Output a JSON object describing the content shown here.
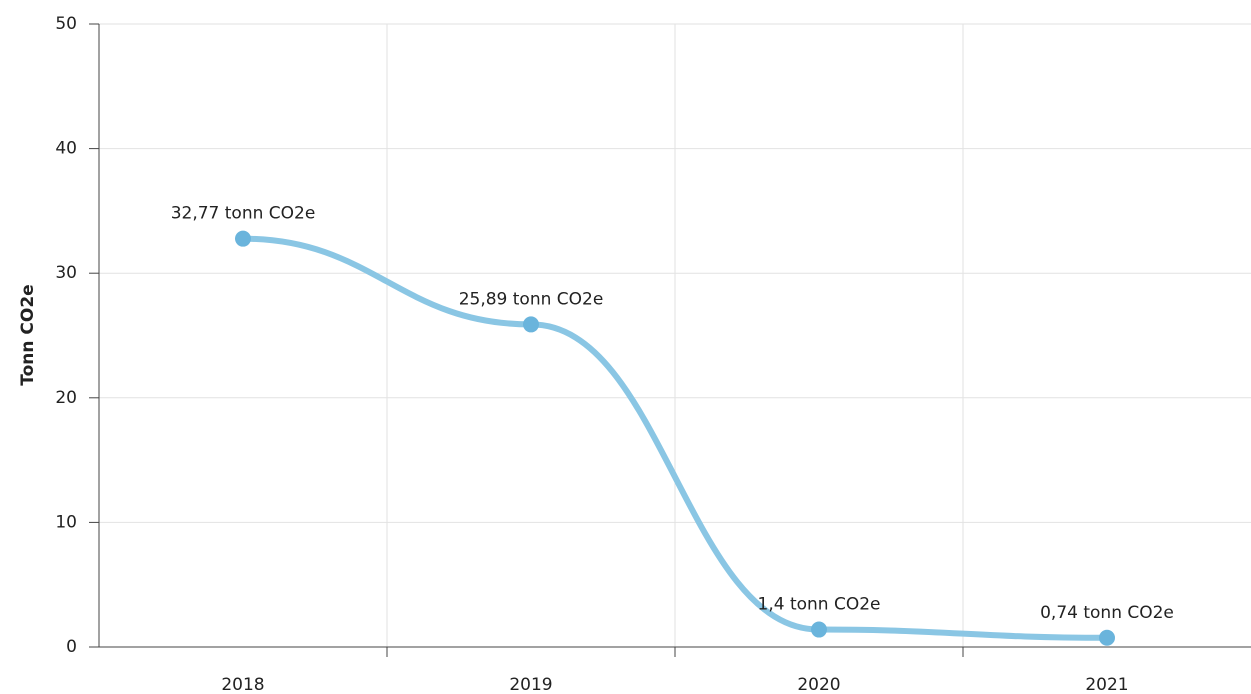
{
  "chart_data": {
    "type": "line",
    "y_label": "Tonn CO2e",
    "categories": [
      "2018",
      "2019",
      "2020",
      "2021"
    ],
    "series": [
      {
        "name": "Tonn CO2e",
        "color": "#8ac6e4",
        "marker_color": "#6ab4dc",
        "values": [
          32.77,
          25.89,
          1.4,
          0.74
        ],
        "value_labels": [
          "32,77 tonn CO2e",
          "25,89 tonn CO2e",
          "1,4 tonn CO2e",
          "0,74 tonn CO2e"
        ]
      }
    ],
    "ylim": [
      0,
      50
    ],
    "yticks": [
      0,
      10,
      20,
      30,
      40,
      50
    ],
    "grid": true
  }
}
